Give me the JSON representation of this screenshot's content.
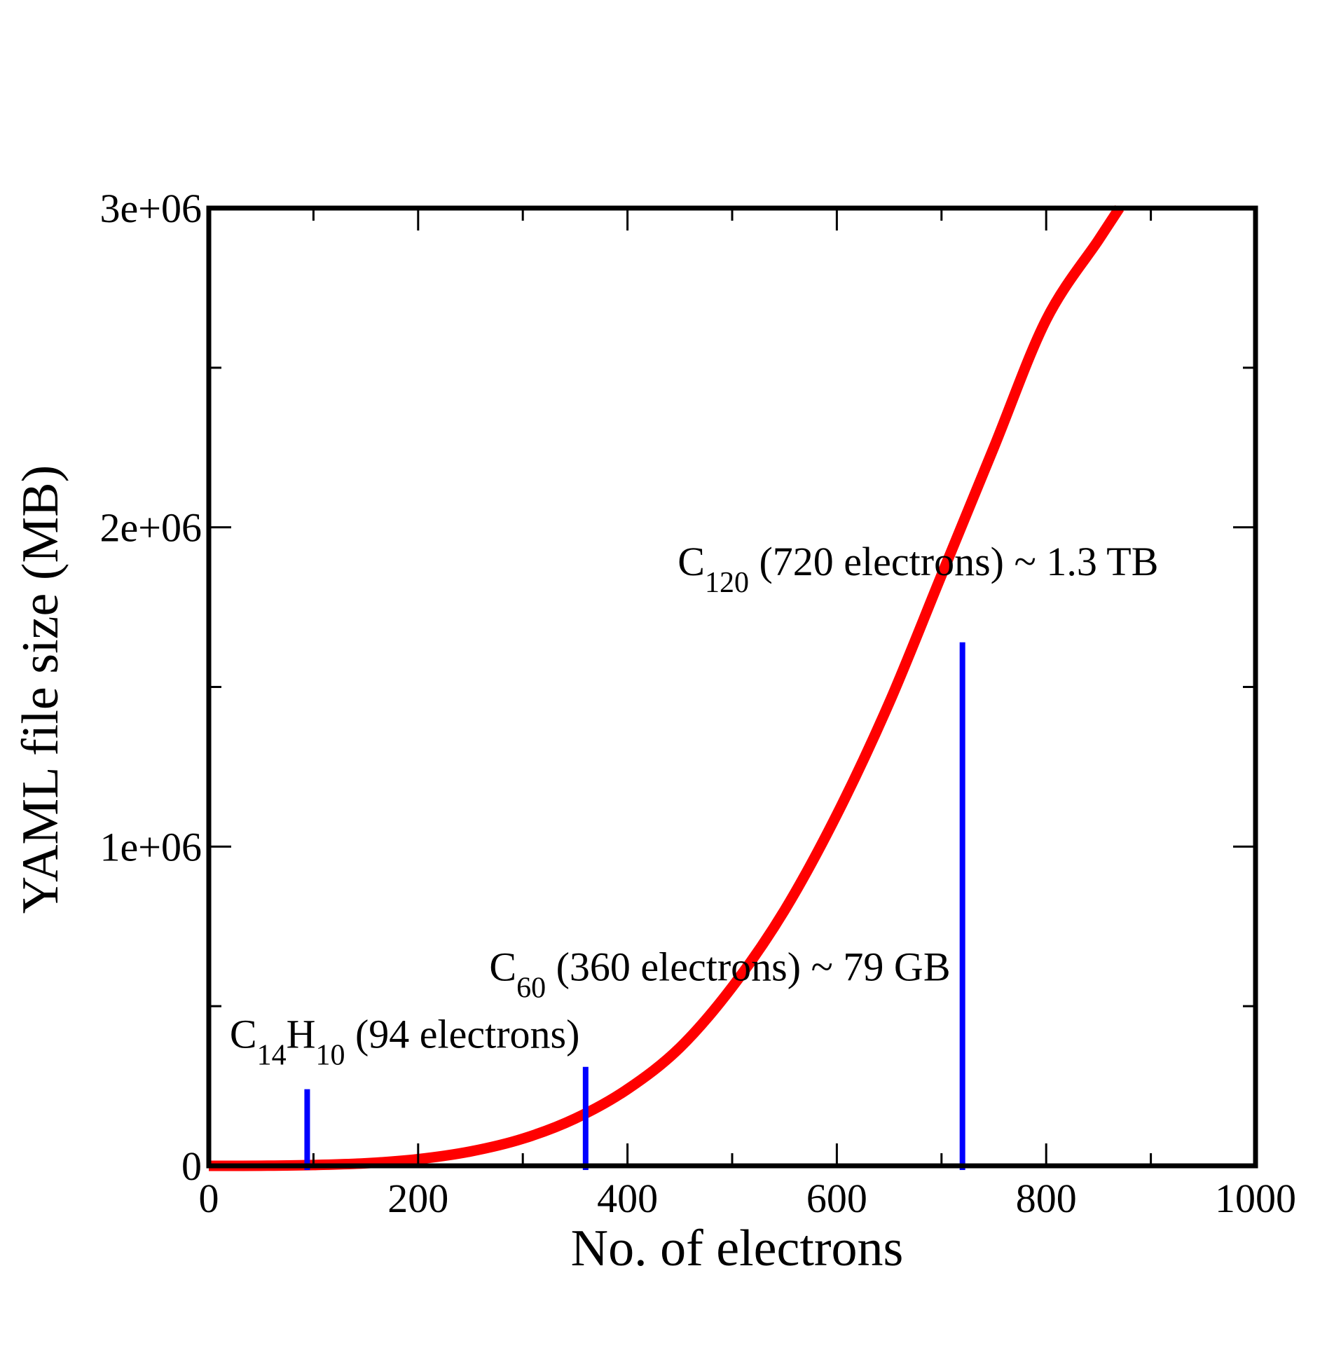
{
  "chart_data": {
    "type": "line",
    "xlabel": "No. of electrons",
    "ylabel": "YAML file size (MB)",
    "xlim": [
      0,
      1000
    ],
    "ylim": [
      0,
      3000000
    ],
    "x_ticks": [
      0,
      200,
      400,
      600,
      800,
      1000
    ],
    "x_tick_labels": [
      "0",
      "200",
      "400",
      "600",
      "800",
      "1000"
    ],
    "x_minor_ticks": [
      100,
      300,
      500,
      700,
      900
    ],
    "y_ticks": [
      0,
      1000000,
      2000000,
      3000000
    ],
    "y_tick_labels": [
      "0",
      "1e+06",
      "2e+06",
      "3e+06"
    ],
    "y_minor_ticks": [
      500000,
      1500000,
      2500000
    ],
    "grid": false,
    "curve": {
      "color": "#ff0000",
      "x": [
        0,
        50,
        100,
        150,
        200,
        250,
        300,
        350,
        400,
        450,
        500,
        550,
        600,
        650,
        700,
        750,
        800,
        850,
        870
      ],
      "y": [
        0,
        300,
        2500,
        8000,
        21000,
        45000,
        85000,
        148000,
        240000,
        370000,
        560000,
        800000,
        1100000,
        1450000,
        1850000,
        2250000,
        2650000,
        2900000,
        3000000
      ]
    },
    "markers": {
      "color": "#0000ff",
      "items": [
        {
          "x": 94,
          "top": 240000
        },
        {
          "x": 360,
          "top": 310000
        },
        {
          "x": 720,
          "top": 1640000
        }
      ]
    },
    "annotations": [
      {
        "label": "C",
        "sub": "14",
        "label2": "H",
        "sub2": "10",
        "rest": " (94 electrons)",
        "x": 20,
        "y": 370000
      },
      {
        "label": "C",
        "sub": "60",
        "rest": " (360 electrons) ~ 79 GB",
        "x": 268,
        "y": 580000
      },
      {
        "label": "C",
        "sub": "120",
        "rest": " (720 electrons) ~ 1.3 TB",
        "x": 448,
        "y": 1850000
      }
    ]
  }
}
